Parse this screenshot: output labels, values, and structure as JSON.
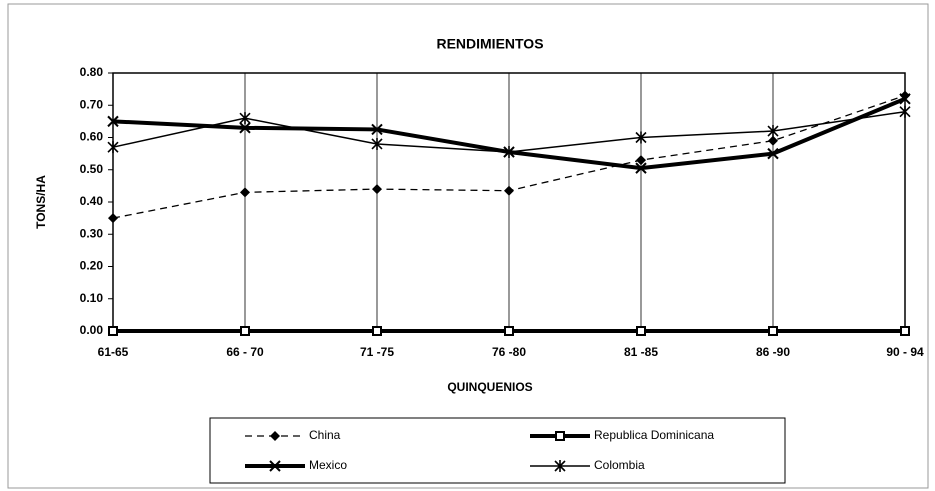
{
  "chart_data": {
    "type": "line",
    "title": "RENDIMIENTOS",
    "x_label": "QUINQUENIOS",
    "y_label": "TONS/HA",
    "categories": [
      "61-65",
      "66 - 70",
      "71 -75",
      "76 -80",
      "81 -85",
      "86 -90",
      "90 - 94"
    ],
    "series": [
      {
        "name": "China",
        "color": "#000000",
        "line_style": "dashed",
        "marker": "diamond",
        "values": [
          0.35,
          0.43,
          0.44,
          0.435,
          0.53,
          0.59,
          0.73
        ]
      },
      {
        "name": "Republica Dominicana",
        "color": "#000000",
        "line_style": "thick",
        "marker": "square",
        "values": [
          0,
          0,
          0,
          0,
          0,
          0,
          0
        ]
      },
      {
        "name": "Mexico",
        "color": "#000000",
        "line_style": "thick",
        "marker": "x",
        "values": [
          0.65,
          0.63,
          0.625,
          0.555,
          0.505,
          0.55,
          0.72
        ]
      },
      {
        "name": "Colombia",
        "color": "#000000",
        "line_style": "solid",
        "marker": "asterisk",
        "values": [
          0.57,
          0.66,
          0.58,
          0.555,
          0.6,
          0.62,
          0.68
        ]
      }
    ],
    "ylim": [
      0,
      0.8
    ],
    "yticks": [
      {
        "value": 0,
        "label": "0.00"
      },
      {
        "value": 0.1,
        "label": "0.10"
      },
      {
        "value": 0.2,
        "label": "0.20"
      },
      {
        "value": 0.3,
        "label": "0.30"
      },
      {
        "value": 0.4,
        "label": "0.40"
      },
      {
        "value": 0.5,
        "label": "0.50"
      },
      {
        "value": 0.6,
        "label": "0.60"
      },
      {
        "value": 0.7,
        "label": "0.70"
      },
      {
        "value": 0.8,
        "label": "0.80"
      }
    ],
    "grid": "vertical",
    "legend": "bottom"
  }
}
